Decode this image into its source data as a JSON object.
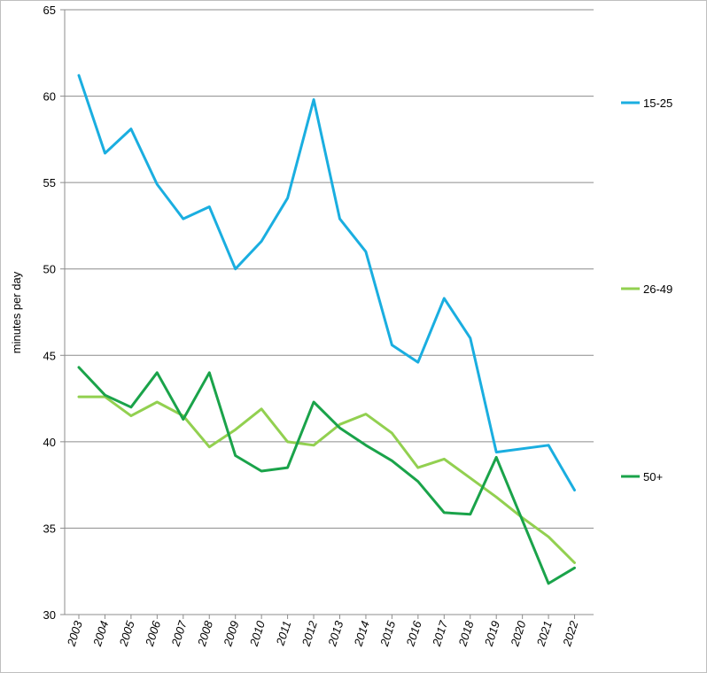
{
  "chart_data": {
    "type": "line",
    "title": "",
    "xlabel": "",
    "ylabel": "minutes per day",
    "ylim": [
      30,
      65
    ],
    "yticks": [
      30,
      35,
      40,
      45,
      50,
      55,
      60,
      65
    ],
    "grid": "horizontal",
    "legend_position": "right",
    "x": [
      "2003",
      "2004",
      "2005",
      "2006",
      "2007",
      "2008",
      "2009",
      "2010",
      "2011",
      "2012",
      "2013",
      "2014",
      "2015",
      "2016",
      "2017",
      "2018",
      "2019",
      "2020",
      "2021",
      "2022"
    ],
    "series": [
      {
        "name": "15-25",
        "color": "#1aaee0",
        "values": [
          61.2,
          56.7,
          58.1,
          54.9,
          52.9,
          53.6,
          50.0,
          51.6,
          54.1,
          59.8,
          52.9,
          51.0,
          45.6,
          44.6,
          48.3,
          46.0,
          39.4,
          null,
          39.8,
          37.2
        ]
      },
      {
        "name": "26-49",
        "color": "#92d050",
        "values": [
          42.6,
          42.6,
          41.5,
          42.3,
          41.5,
          39.7,
          40.7,
          41.9,
          40.0,
          39.8,
          41.0,
          41.6,
          40.5,
          38.5,
          39.0,
          37.9,
          36.8,
          35.6,
          34.5,
          33.0
        ]
      },
      {
        "name": "50+",
        "color": "#1aa34a",
        "values": [
          44.3,
          42.7,
          42.0,
          44.0,
          41.3,
          44.0,
          39.2,
          38.3,
          38.5,
          42.3,
          40.8,
          39.8,
          38.9,
          37.7,
          35.9,
          35.8,
          39.1,
          null,
          31.8,
          32.7
        ]
      }
    ]
  }
}
